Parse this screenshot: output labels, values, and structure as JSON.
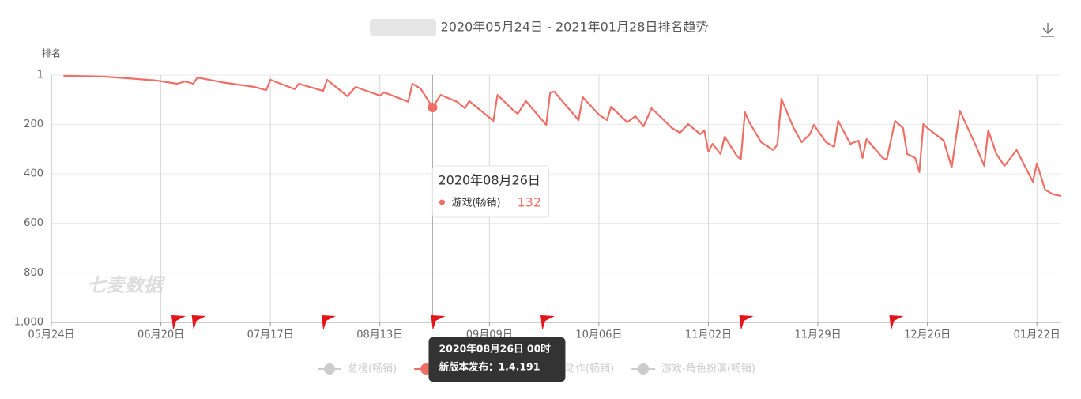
{
  "chart_data": {
    "type": "line",
    "title": "2020年05月24日 - 2021年01月28日排名趋势",
    "ylabel": "排名",
    "watermark": "七麦数据",
    "x": [
      "05月27日",
      "06月06日",
      "06月12日",
      "06月19日",
      "06月24日",
      "06月26日",
      "06月28日",
      "06月29日",
      "07月05日",
      "07月13日",
      "07月16日",
      "07月17日",
      "07月23日",
      "07月24日",
      "07月30日",
      "07月31日",
      "08月05日",
      "08月07日",
      "08月13日",
      "08月14日",
      "08月20日",
      "08月21日",
      "08月23日",
      "08月26日",
      "08月28日",
      "09月01日",
      "09月03日",
      "09月04日",
      "09月10日",
      "09月11日",
      "09月15日",
      "09月16日",
      "09月18日",
      "09月23日",
      "09月24日",
      "09月25日",
      "10月01日",
      "10月02日",
      "10月06日",
      "10月08日",
      "10月09日",
      "10月13日",
      "10月15日",
      "10月17日",
      "10月19日",
      "10月24日",
      "10月26日",
      "10月28日",
      "10月31日",
      "11月01日",
      "11月02日",
      "11月03日",
      "11月05日",
      "11月06日",
      "11月09日",
      "11月10日",
      "11月11日",
      "11月12日",
      "11月15日",
      "11月18日",
      "11月19日",
      "11月20日",
      "11月23日",
      "11月25日",
      "11月27日",
      "11月28日",
      "12月01日",
      "12月03日",
      "12月04日",
      "12月07日",
      "12月09日",
      "12月10日",
      "12月11日",
      "12月15日",
      "12月16日",
      "12月18日",
      "12月20日",
      "12月21日",
      "12月23日",
      "12月24日",
      "12月25日",
      "12月26日",
      "12月30日",
      "01月01日",
      "01月03日",
      "01月07日",
      "01月09日",
      "01月10日",
      "01月12日",
      "01月14日",
      "01月17日",
      "01月21日",
      "01月22日",
      "01月24日",
      "01月26日",
      "01月28日"
    ],
    "series": [
      {
        "name": "总榜(畅销)",
        "visible": false
      },
      {
        "name": "游戏(畅销)",
        "color": "#ef6f66",
        "visible": true,
        "values": [
          4,
          7,
          14,
          23,
          36,
          27,
          36,
          11,
          30,
          49,
          62,
          20,
          58,
          36,
          65,
          20,
          87,
          49,
          84,
          71,
          109,
          36,
          55,
          132,
          81,
          109,
          135,
          106,
          186,
          81,
          145,
          157,
          106,
          202,
          71,
          68,
          183,
          90,
          161,
          183,
          129,
          192,
          167,
          208,
          135,
          215,
          234,
          199,
          240,
          224,
          311,
          279,
          320,
          250,
          327,
          342,
          151,
          189,
          272,
          304,
          282,
          97,
          215,
          272,
          240,
          202,
          272,
          291,
          186,
          279,
          266,
          336,
          260,
          336,
          342,
          186,
          215,
          320,
          336,
          393,
          199,
          215,
          266,
          374,
          145,
          288,
          368,
          224,
          320,
          368,
          304,
          432,
          358,
          464,
          483,
          489
        ]
      },
      {
        "name": "游戏-动作(畅销)",
        "visible": false
      },
      {
        "name": "游戏-角色扮演(畅销)",
        "visible": false
      }
    ],
    "xlim": [
      "05月24日",
      "01月28日"
    ],
    "xticks": [
      "05月24日",
      "06月20日",
      "07月17日",
      "08月13日",
      "09月09日",
      "10月06日",
      "11月02日",
      "11月29日",
      "12月26日",
      "01月22日"
    ],
    "ylim": [
      1,
      1000
    ],
    "y_inverted": true,
    "yticks": [
      1,
      200,
      400,
      600,
      800,
      {
        "value": 1000,
        "label": "1,000"
      }
    ],
    "grid": true,
    "markers": [
      "06月23日",
      "06月28日",
      "07月30日",
      "08月26日",
      "09月22日",
      "11月10日",
      "12月17日"
    ],
    "tooltip": {
      "title": "2020年08月26日"
    },
    "marker_tooltip": {
      "title": "2020年08月26日 00时",
      "text": "新版本发布：1.4.191"
    }
  }
}
